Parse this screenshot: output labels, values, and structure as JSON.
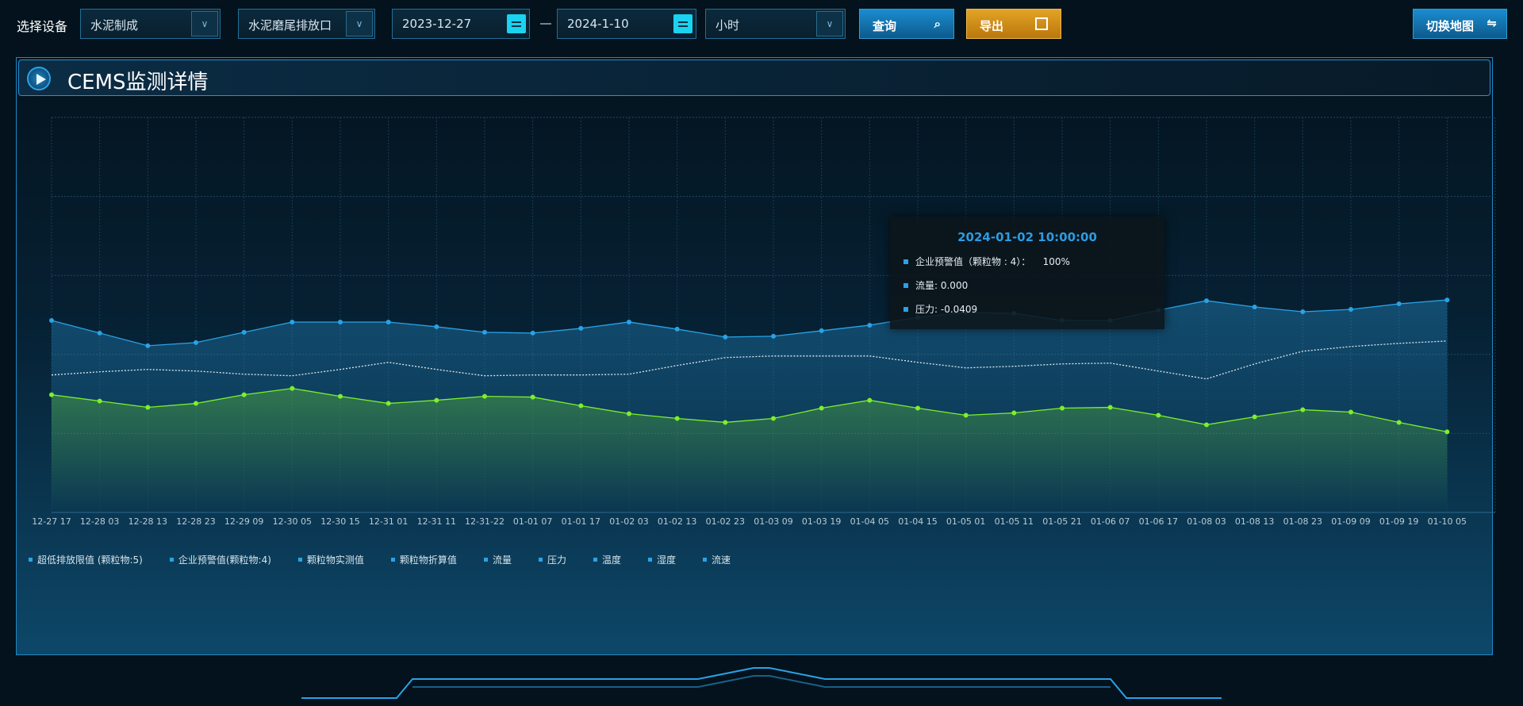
{
  "toolbar": {
    "device_label": "选择设备",
    "device_select": "水泥制成",
    "outlet_select": "水泥磨尾排放口",
    "start_date": "2023-12-27",
    "end_date": "2024-1-10",
    "interval_select": "小时",
    "query_label": "查询",
    "export_label": "导出",
    "switch_map_label": "切换地图",
    "colors": {
      "query": "#1478b4",
      "export": "#d9961a"
    }
  },
  "panel": {
    "title": "CEMS监测详情"
  },
  "tooltip": {
    "time": "2024-01-02 10:00:00",
    "rows": [
      "企业预警值（颗粒物 : 4）：    100%",
      "流量: 0.000",
      "压力: -0.0409"
    ]
  },
  "legend": [
    "超低排放限值 (颗粒物:5)",
    "企业预警值(颗粒物:4)",
    "颗粒物实测值",
    "颗粒物折算值",
    "流量",
    "压力",
    "温度",
    "湿度",
    "流速"
  ],
  "chart_data": {
    "type": "line",
    "grid": true,
    "legend_placement": "bottom-left",
    "ylim": [
      0,
      5
    ],
    "categories": [
      "12-27 17",
      "12-28 03",
      "12-28 13",
      "12-28 23",
      "12-29 09",
      "12-30 05",
      "12-30 15",
      "12-31 01",
      "12-31 11",
      "12-31-22",
      "01-01 07",
      "01-01 17",
      "01-02 03",
      "01-02 13",
      "01-02 23",
      "01-03 09",
      "01-03 19",
      "01-04 05",
      "01-04 15",
      "01-05 01",
      "01-05 11",
      "01-05 21",
      "01-06 07",
      "01-06 17",
      "01-08 03",
      "01-08 13",
      "01-08 23",
      "01-09 09",
      "01-09 19",
      "01-10 05"
    ],
    "series": [
      {
        "color": "#2aa2e6",
        "style": "solid-area",
        "values": [
          2.43,
          2.27,
          2.11,
          2.15,
          2.28,
          2.41,
          2.41,
          2.41,
          2.35,
          2.28,
          2.27,
          2.33,
          2.41,
          2.32,
          2.22,
          2.23,
          2.3,
          2.37,
          2.47,
          2.53,
          2.52,
          2.43,
          2.43,
          2.56,
          2.68,
          2.6,
          2.54,
          2.57,
          2.64,
          2.69
        ]
      },
      {
        "color": "#dfe8ee",
        "style": "dotted",
        "values": [
          1.74,
          1.78,
          1.81,
          1.79,
          1.75,
          1.73,
          1.81,
          1.9,
          1.81,
          1.73,
          1.74,
          1.74,
          1.75,
          1.86,
          1.96,
          1.98,
          1.98,
          1.98,
          1.9,
          1.83,
          1.85,
          1.88,
          1.89,
          1.79,
          1.69,
          1.88,
          2.04,
          2.1,
          2.14,
          2.17
        ]
      },
      {
        "color": "#7cf02a",
        "style": "solid-area",
        "values": [
          1.49,
          1.41,
          1.33,
          1.38,
          1.49,
          1.57,
          1.47,
          1.38,
          1.42,
          1.47,
          1.46,
          1.35,
          1.25,
          1.19,
          1.14,
          1.19,
          1.32,
          1.42,
          1.32,
          1.23,
          1.26,
          1.32,
          1.33,
          1.23,
          1.11,
          1.21,
          1.3,
          1.27,
          1.14,
          1.02
        ]
      }
    ]
  }
}
